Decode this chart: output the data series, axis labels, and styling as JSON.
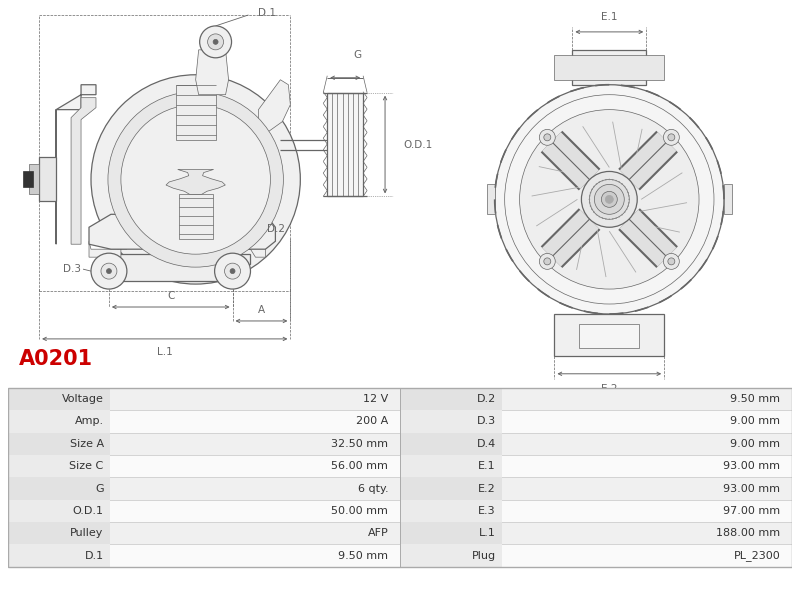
{
  "title_code": "A0201",
  "title_color": "#cc0000",
  "table_data": [
    [
      "Voltage",
      "12 V",
      "D.2",
      "9.50 mm"
    ],
    [
      "Amp.",
      "200 A",
      "D.3",
      "9.00 mm"
    ],
    [
      "Size A",
      "32.50 mm",
      "D.4",
      "9.00 mm"
    ],
    [
      "Size C",
      "56.00 mm",
      "E.1",
      "93.00 mm"
    ],
    [
      "G",
      "6 qty.",
      "E.2",
      "93.00 mm"
    ],
    [
      "O.D.1",
      "50.00 mm",
      "E.3",
      "97.00 mm"
    ],
    [
      "Pulley",
      "AFP",
      "L.1",
      "188.00 mm"
    ],
    [
      "D.1",
      "9.50 mm",
      "Plug",
      "PL_2300"
    ]
  ],
  "fig_width": 8.0,
  "fig_height": 5.89,
  "lc": "#666666",
  "lc2": "#999999",
  "bg": "#ffffff"
}
